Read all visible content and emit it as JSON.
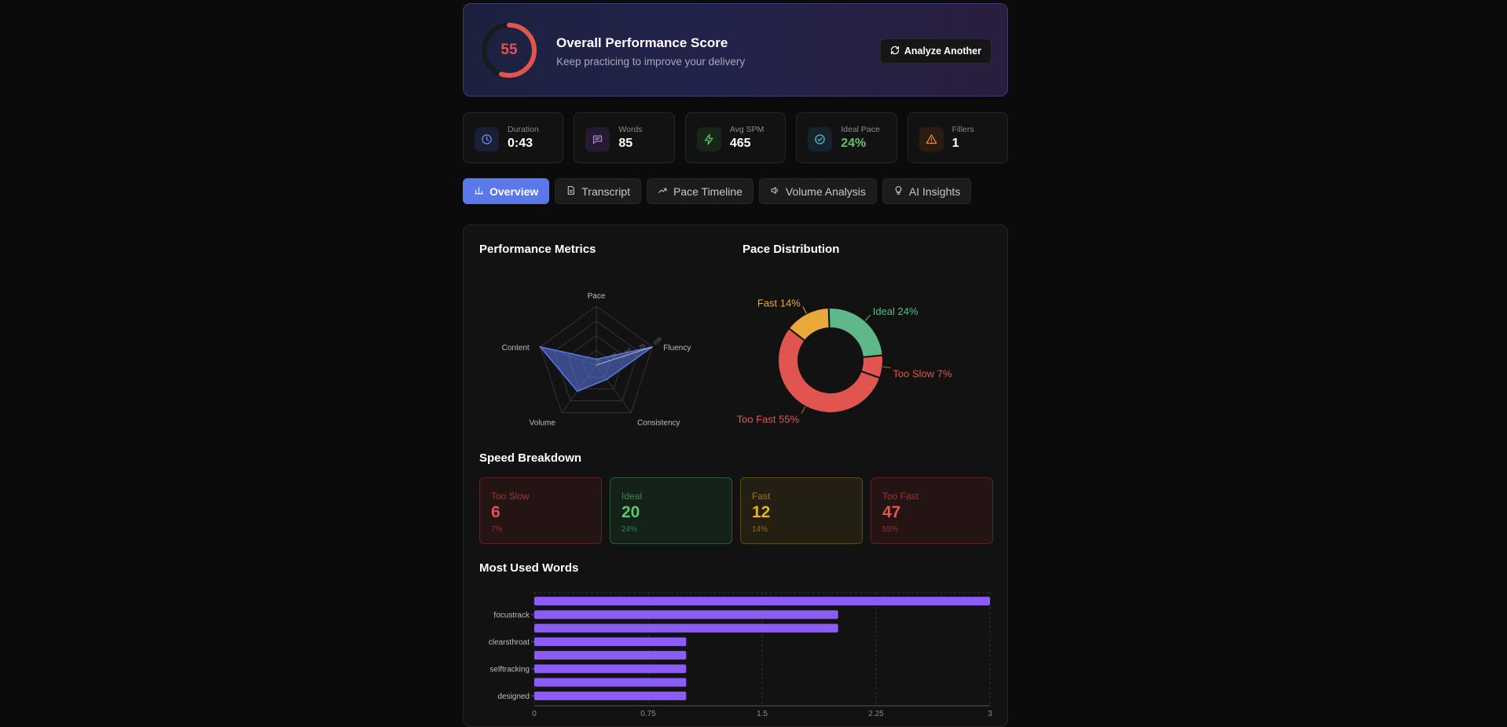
{
  "hero": {
    "score": "55",
    "score_value": 55,
    "title": "Overall Performance Score",
    "subtitle": "Keep practicing to improve your delivery",
    "analyze_label": "Analyze Another"
  },
  "stats": [
    {
      "label": "Duration",
      "value": "0:43",
      "icon": "clock-icon",
      "color": "#6f8df0"
    },
    {
      "label": "Words",
      "value": "85",
      "icon": "message-icon",
      "color": "#b07ae8"
    },
    {
      "label": "Avg SPM",
      "value": "465",
      "icon": "bolt-icon",
      "color": "#5ec46e"
    },
    {
      "label": "Ideal Pace",
      "value": "24%",
      "icon": "check-circle-icon",
      "color": "#58b8d8"
    },
    {
      "label": "Fillers",
      "value": "1",
      "icon": "warning-icon",
      "color": "#e38a3a"
    }
  ],
  "tabs": [
    {
      "label": "Overview",
      "icon": "bar-chart-icon",
      "active": true
    },
    {
      "label": "Transcript",
      "icon": "document-icon",
      "active": false
    },
    {
      "label": "Pace Timeline",
      "icon": "trending-icon",
      "active": false
    },
    {
      "label": "Volume Analysis",
      "icon": "speaker-icon",
      "active": false
    },
    {
      "label": "AI Insights",
      "icon": "lightbulb-icon",
      "active": false
    }
  ],
  "sections": {
    "metrics": "Performance Metrics",
    "pace": "Pace Distribution",
    "speed": "Speed Breakdown",
    "words": "Most Used Words"
  },
  "chart_data": [
    {
      "type": "radar",
      "axes": [
        "Pace",
        "Fluency",
        "Consistency",
        "Volume",
        "Content"
      ],
      "values": [
        10,
        100,
        30,
        55,
        100
      ],
      "scale_ticks": [
        "0",
        "25",
        "50",
        "75",
        "100"
      ],
      "range": [
        0,
        100
      ],
      "color": "#5b78e8"
    },
    {
      "type": "pie",
      "donut": true,
      "slices": [
        {
          "label": "Ideal 24%",
          "value": 24,
          "color": "#5fb889"
        },
        {
          "label": "Too Slow 7%",
          "value": 7,
          "color": "#e05550"
        },
        {
          "label": "Too Fast 55%",
          "value": 55,
          "color": "#e05550"
        },
        {
          "label": "Fast 14%",
          "value": 14,
          "color": "#e8a93a"
        }
      ]
    },
    {
      "type": "bar",
      "orientation": "horizontal",
      "categories": [
        "",
        "focustrack",
        "",
        "clearsthroat",
        "",
        "selftracking",
        "",
        "designed"
      ],
      "values": [
        3,
        2,
        2,
        1,
        1,
        1,
        1,
        1
      ],
      "xticks": [
        "0",
        "0.75",
        "1.5",
        "2.25",
        "3"
      ],
      "xlim": [
        0,
        3
      ],
      "grid": true,
      "color": "#8b5cf6"
    }
  ],
  "speed": [
    {
      "label": "Too Slow",
      "value": "6",
      "pct": "7%",
      "color": "#e05550",
      "bg": "#241414",
      "border": "#5a2424"
    },
    {
      "label": "Ideal",
      "value": "20",
      "pct": "24%",
      "color": "#5ec46e",
      "bg": "#15221a",
      "border": "#2c5a38"
    },
    {
      "label": "Fast",
      "value": "12",
      "pct": "14%",
      "color": "#e8b02a",
      "bg": "#231f12",
      "border": "#5c4c1c"
    },
    {
      "label": "Too Fast",
      "value": "47",
      "pct": "55%",
      "color": "#e05550",
      "bg": "#241414",
      "border": "#5a2424"
    }
  ]
}
